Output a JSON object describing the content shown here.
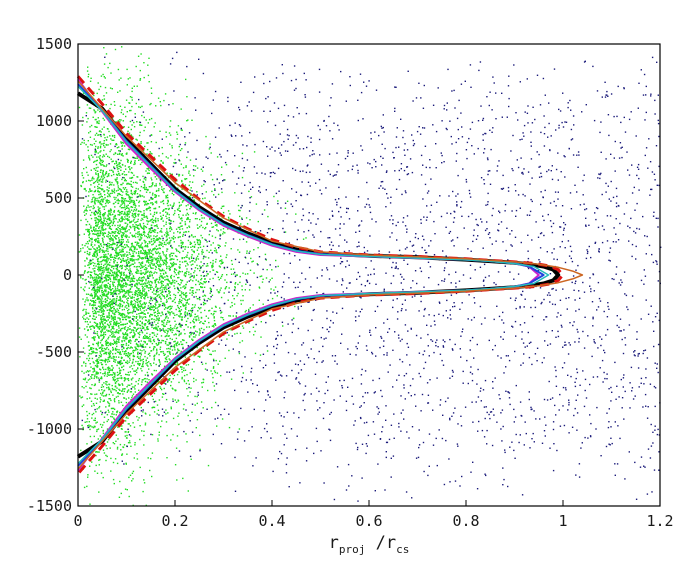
{
  "chart_data": {
    "type": "scatter",
    "title": "",
    "xlabel": {
      "base1": "r",
      "sub1": "proj",
      "sep": " /r",
      "sub2": "cs"
    },
    "ylabel": "",
    "xlim": [
      0,
      1.2
    ],
    "ylim": [
      -1500,
      1500
    ],
    "xticks": [
      "0",
      "0.2",
      "0.4",
      "0.6",
      "0.8",
      "1",
      "1.2"
    ],
    "xtick_values": [
      0,
      0.2,
      0.4,
      0.6,
      0.8,
      1.0,
      1.2
    ],
    "yticks": [
      "1500",
      "1000",
      "500",
      "0",
      "-500",
      "-1000",
      "-1500"
    ],
    "ytick_values": [
      1500,
      1000,
      500,
      0,
      -500,
      -1000,
      -1500
    ],
    "grid": false,
    "legend": "none",
    "scatter_series": [
      {
        "color": "#22dd22",
        "note": "dense near r=0, spreading to ~0.45",
        "approx_count": 6000
      },
      {
        "color": "#1a1a7a",
        "note": "spread over full range",
        "approx_count": 3000
      }
    ],
    "curves": [
      {
        "style": "solid",
        "color": "#000000",
        "width": 4,
        "x": [
          0,
          0.05,
          0.1,
          0.15,
          0.2,
          0.25,
          0.3,
          0.35,
          0.4,
          0.45,
          0.5,
          0.6,
          0.7,
          0.8,
          0.85,
          0.9,
          0.93,
          0.96,
          0.98,
          0.99
        ],
        "y": [
          1180,
          1080,
          880,
          720,
          560,
          440,
          340,
          270,
          210,
          165,
          140,
          125,
          115,
          100,
          90,
          80,
          70,
          55,
          35,
          0
        ]
      },
      {
        "style": "dashed",
        "color": "#dd1111",
        "width": 3,
        "x": [
          0,
          0.05,
          0.1,
          0.15,
          0.2,
          0.25,
          0.3,
          0.35,
          0.4,
          0.45,
          0.5,
          0.6,
          0.7,
          0.8,
          0.85,
          0.9,
          0.94,
          0.97,
          0.99,
          1.0
        ],
        "y": [
          1290,
          1110,
          920,
          770,
          620,
          490,
          380,
          300,
          230,
          180,
          150,
          130,
          120,
          105,
          95,
          85,
          75,
          60,
          35,
          0
        ]
      },
      {
        "style": "solid",
        "color": "#cc22cc",
        "width": 2,
        "x": [
          0,
          0.05,
          0.1,
          0.15,
          0.2,
          0.25,
          0.3,
          0.35,
          0.4,
          0.45,
          0.5,
          0.6,
          0.7,
          0.8,
          0.85,
          0.9,
          0.93,
          0.95
        ],
        "y": [
          1270,
          1060,
          850,
          690,
          540,
          420,
          320,
          250,
          190,
          150,
          130,
          120,
          110,
          100,
          90,
          75,
          55,
          0
        ]
      },
      {
        "style": "solid",
        "color": "#2244dd",
        "width": 2,
        "x": [
          0,
          0.05,
          0.1,
          0.15,
          0.2,
          0.25,
          0.3,
          0.35,
          0.4,
          0.45,
          0.5,
          0.6,
          0.7,
          0.8,
          0.85,
          0.9,
          0.93,
          0.96
        ],
        "y": [
          1240,
          1070,
          870,
          710,
          550,
          430,
          330,
          260,
          200,
          158,
          136,
          122,
          112,
          100,
          90,
          76,
          56,
          0
        ]
      },
      {
        "style": "solid",
        "color": "#22bbbb",
        "width": 1.5,
        "x": [
          0,
          0.05,
          0.1,
          0.15,
          0.2,
          0.25,
          0.3,
          0.35,
          0.4,
          0.45,
          0.5,
          0.6,
          0.7,
          0.8,
          0.85,
          0.9,
          0.94,
          0.97
        ],
        "y": [
          1225,
          1065,
          865,
          705,
          548,
          428,
          328,
          258,
          198,
          156,
          134,
          120,
          110,
          98,
          88,
          74,
          55,
          0
        ]
      },
      {
        "style": "solid",
        "color": "#cc6622",
        "width": 1.5,
        "x": [
          0,
          0.1,
          0.2,
          0.3,
          0.4,
          0.5,
          0.6,
          0.7,
          0.8,
          0.9,
          0.95,
          0.99,
          1.02,
          1.04
        ],
        "y": [
          1260,
          900,
          600,
          370,
          220,
          150,
          130,
          118,
          105,
          85,
          70,
          50,
          25,
          0
        ]
      }
    ]
  }
}
